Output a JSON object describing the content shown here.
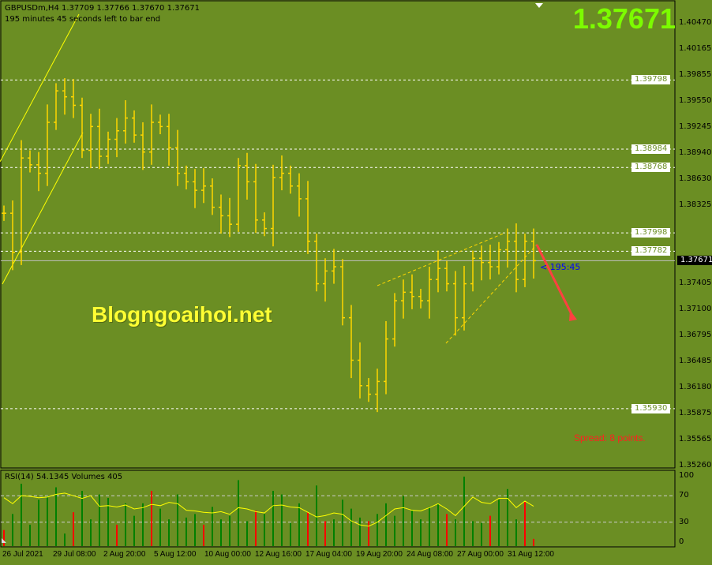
{
  "header": {
    "title": "GBPUSDm,H4  1.37709 1.37766 1.37670 1.37671",
    "subtitle": "195 minutes 45 seconds left to bar end",
    "big_price": "1.37671",
    "countdown": "< 195:45",
    "spread": "Spread: 8 points.",
    "watermark": "Blogngoaihoi.net",
    "indicator_label": "RSI(14) 54.1345   Volumes 405"
  },
  "colors": {
    "background": "#6b8e23",
    "bars": "#ffd700",
    "big_price": "#7cfc00",
    "rsi_line": "#ffff00",
    "volume_up": "#008000",
    "volume_down": "#ff0000",
    "arrow": "#ff4040"
  },
  "chart_data": [
    {
      "type": "bar",
      "symbol": "GBPUSDm",
      "timeframe": "H4",
      "ylim": [
        1.3526,
        1.4047
      ],
      "y_ticks": [
        "1.40470",
        "1.40165",
        "1.39855",
        "1.39550",
        "1.39245",
        "1.38940",
        "1.38630",
        "1.38325",
        "1.37405",
        "1.37100",
        "1.36795",
        "1.36485",
        "1.36180",
        "1.35875",
        "1.35565",
        "1.35260"
      ],
      "x_ticks": [
        "26 Jul 2021",
        "29 Jul 08:00",
        "2 Aug 20:00",
        "5 Aug 12:00",
        "10 Aug 00:00",
        "12 Aug 16:00",
        "17 Aug 04:00",
        "19 Aug 20:00",
        "24 Aug 08:00",
        "27 Aug 00:00",
        "31 Aug 12:00"
      ],
      "horizontal_levels": [
        "1.39798",
        "1.38984",
        "1.38768",
        "1.37998",
        "1.37782",
        "1.35930"
      ],
      "bid_line": "1.37671",
      "closes": [
        1.3823,
        1.3777,
        1.3888,
        1.388,
        1.387,
        1.393,
        1.3967,
        1.396,
        1.395,
        1.3897,
        1.3925,
        1.389,
        1.391,
        1.392,
        1.3935,
        1.3915,
        1.3895,
        1.393,
        1.3925,
        1.39,
        1.387,
        1.386,
        1.385,
        1.3855,
        1.383,
        1.382,
        1.381,
        1.3879,
        1.386,
        1.3815,
        1.3805,
        1.3865,
        1.387,
        1.3855,
        1.384,
        1.379,
        1.374,
        1.3755,
        1.376,
        1.37,
        1.365,
        1.362,
        1.361,
        1.3625,
        1.3675,
        1.372,
        1.373,
        1.3725,
        1.372,
        1.3745,
        1.3758,
        1.374,
        1.37,
        1.374,
        1.377,
        1.3765,
        1.376,
        1.378,
        1.379,
        1.3745,
        1.379,
        1.37671
      ]
    },
    {
      "type": "line",
      "name": "RSI(14)",
      "ylim": [
        0,
        100
      ],
      "y_ticks": [
        "100",
        "70",
        "30",
        "0"
      ],
      "levels": [
        70,
        30
      ],
      "values": [
        67,
        58,
        70,
        69,
        67,
        68,
        72,
        74,
        70,
        66,
        70,
        54,
        55,
        53,
        56,
        50,
        52,
        57,
        55,
        60,
        58,
        48,
        47,
        45,
        44,
        46,
        42,
        52,
        50,
        46,
        44,
        55,
        56,
        53,
        52,
        45,
        38,
        40,
        44,
        42,
        32,
        26,
        24,
        30,
        40,
        50,
        52,
        48,
        47,
        52,
        58,
        50,
        40,
        54,
        68,
        60,
        58,
        66,
        66,
        52,
        62,
        54.1345
      ]
    },
    {
      "type": "bar",
      "name": "Volumes",
      "values": [
        900,
        1800,
        3500,
        1200,
        2600,
        2800,
        3300,
        700,
        1900,
        3100,
        1500,
        2900,
        2700,
        1200,
        2400,
        1700,
        2400,
        3100,
        2100,
        1500,
        2900,
        1600,
        1800,
        1200,
        2200,
        1500,
        1700,
        3700,
        1400,
        2000,
        1800,
        3100,
        2900,
        1300,
        2400,
        1900,
        3400,
        1400,
        1500,
        2600,
        2100,
        1600,
        1400,
        1800,
        2400,
        1700,
        2800,
        2000,
        1500,
        2200,
        2400,
        1800,
        1500,
        3900,
        1400,
        1300,
        1700,
        2600,
        3200,
        1500,
        2500,
        405
      ],
      "down_bars": [
        0,
        8,
        13,
        17,
        23,
        29,
        35,
        37,
        42,
        51,
        56,
        60,
        61
      ]
    }
  ]
}
